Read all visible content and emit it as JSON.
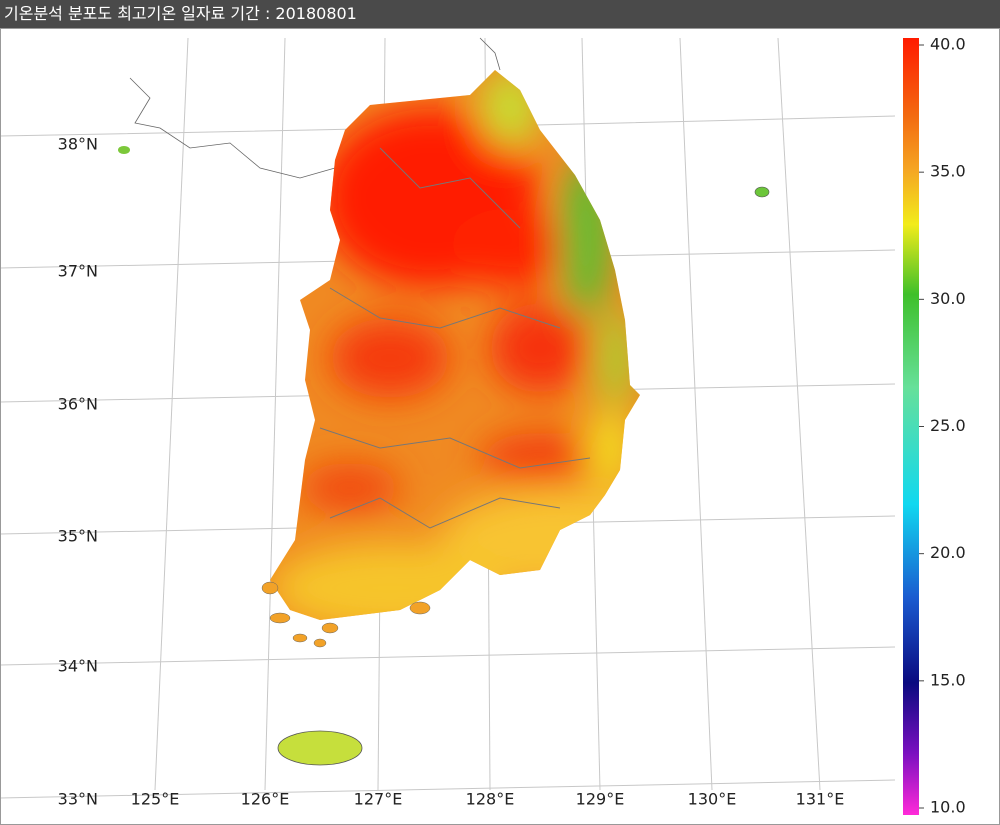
{
  "title": "기온분석 분포도 최고기온 일자료 기간 : 20180801",
  "map": {
    "lat_labels": [
      "38°N",
      "37°N",
      "36°N",
      "35°N",
      "34°N",
      "33°N"
    ],
    "lon_labels": [
      "125°E",
      "126°E",
      "127°E",
      "128°E",
      "129°E",
      "130°E",
      "131°E"
    ]
  },
  "colorbar": {
    "range": [
      10,
      40
    ],
    "ticks": [
      {
        "value": 40,
        "label": "40.0"
      },
      {
        "value": 35,
        "label": "35.0"
      },
      {
        "value": 30,
        "label": "30.0"
      },
      {
        "value": 25,
        "label": "25.0"
      },
      {
        "value": 20,
        "label": "20.0"
      },
      {
        "value": 15,
        "label": "15.0"
      },
      {
        "value": 10,
        "label": "10.0"
      }
    ]
  }
}
